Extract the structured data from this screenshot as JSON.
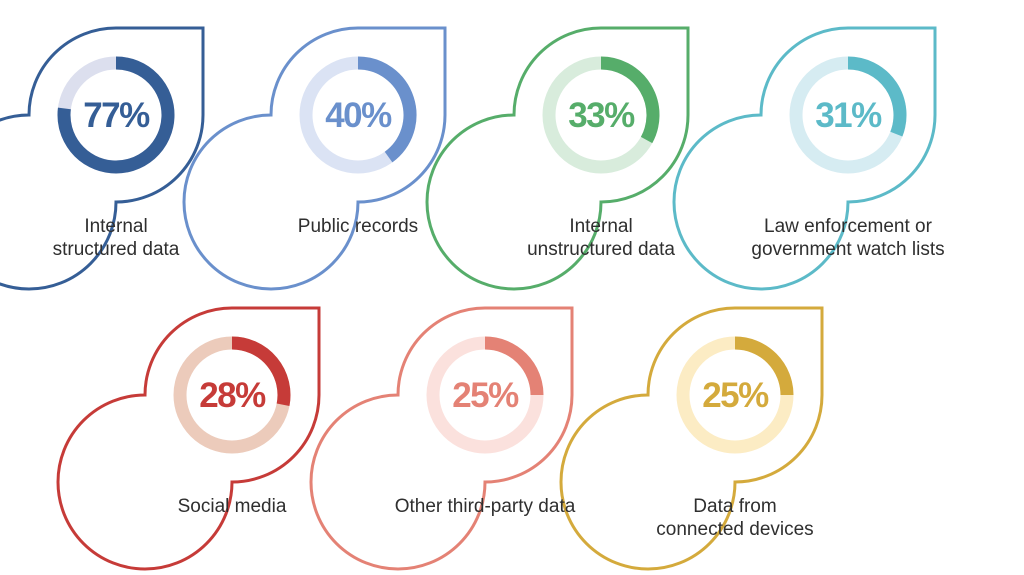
{
  "chart_data": {
    "type": "donut-grid",
    "title": "",
    "items": [
      {
        "label_lines": [
          "Internal",
          "structured data"
        ],
        "value": 77,
        "value_label": "77%",
        "color": "#355e96",
        "track": "#dcdfee"
      },
      {
        "label_lines": [
          "Public records"
        ],
        "value": 40,
        "value_label": "40%",
        "color": "#6a90cc",
        "track": "#dbe3f4"
      },
      {
        "label_lines": [
          "Internal",
          "unstructured data"
        ],
        "value": 33,
        "value_label": "33%",
        "color": "#56ad6a",
        "track": "#d8ecdc"
      },
      {
        "label_lines": [
          "Law enforcement or",
          "government watch lists"
        ],
        "value": 31,
        "value_label": "31%",
        "color": "#5cbac8",
        "track": "#d6ecf2"
      },
      {
        "label_lines": [
          "Social media"
        ],
        "value": 28,
        "value_label": "28%",
        "color": "#c63b38",
        "track": "#eccbbb"
      },
      {
        "label_lines": [
          "Other third-party data"
        ],
        "value": 25,
        "value_label": "25%",
        "color": "#e48275",
        "track": "#fbe1dd"
      },
      {
        "label_lines": [
          "Data from",
          "connected devices"
        ],
        "value": 25,
        "value_label": "25%",
        "color": "#d4aa3c",
        "track": "#fcecc4"
      }
    ]
  }
}
